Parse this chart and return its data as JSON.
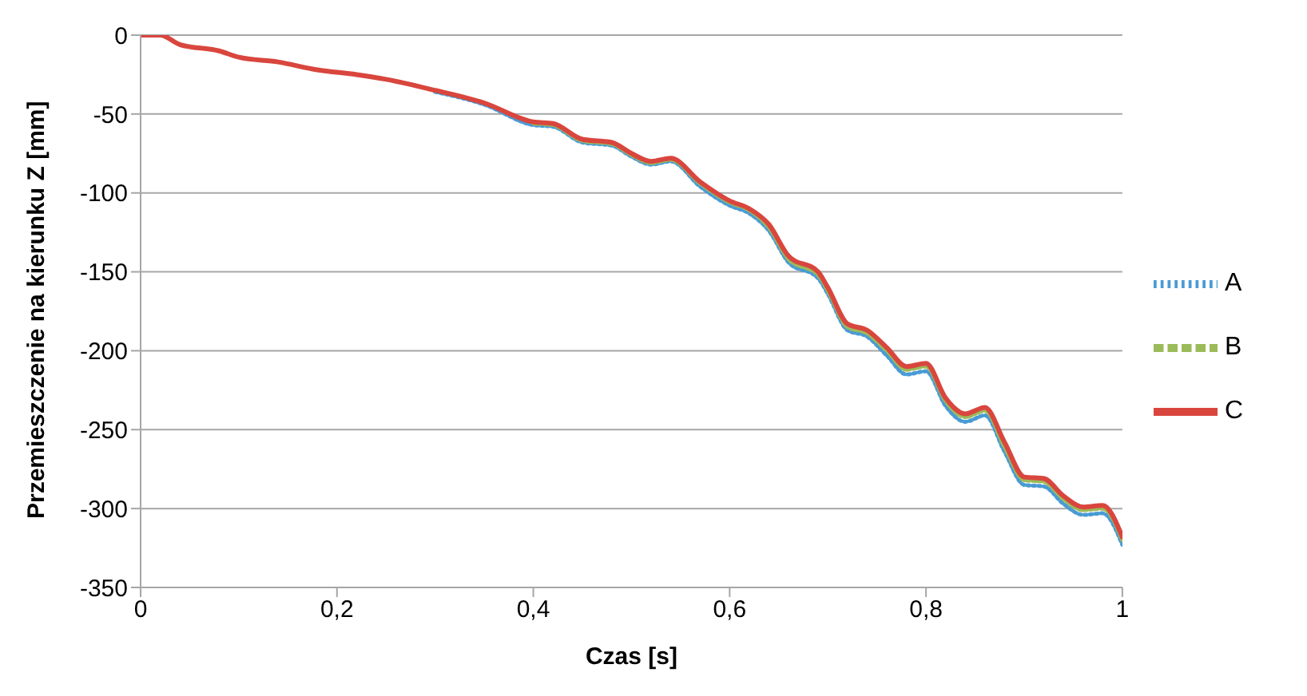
{
  "chart_data": {
    "type": "line",
    "xlabel": "Czas [s]",
    "ylabel": "Przemieszczenie na kierunku Z [mm]",
    "x": [
      0,
      0.02,
      0.04,
      0.08,
      0.1,
      0.14,
      0.18,
      0.22,
      0.25,
      0.3,
      0.35,
      0.4,
      0.42,
      0.45,
      0.48,
      0.5,
      0.52,
      0.54,
      0.57,
      0.6,
      0.62,
      0.64,
      0.66,
      0.69,
      0.7,
      0.72,
      0.74,
      0.76,
      0.78,
      0.8,
      0.82,
      0.84,
      0.86,
      0.88,
      0.9,
      0.92,
      0.94,
      0.96,
      0.98,
      1
    ],
    "series": [
      {
        "name": "A",
        "color": "#4a9bd4",
        "line_style": "dotted",
        "values": [
          null,
          null,
          null,
          null,
          null,
          null,
          null,
          null,
          null,
          -36,
          -44,
          -57,
          -58,
          -68,
          -70,
          -77,
          -82,
          -80,
          -96,
          -108,
          -113,
          -124,
          -144,
          -154,
          -164,
          -187,
          -191,
          -203,
          -215,
          -213,
          -235,
          -245,
          -241,
          -264,
          -285,
          -286,
          -297,
          -304,
          -303,
          -323
        ]
      },
      {
        "name": "B",
        "color": "#9bbb59",
        "line_style": "dashed",
        "values": [
          null,
          null,
          null,
          null,
          null,
          null,
          null,
          null,
          null,
          null,
          null,
          -56,
          -57,
          -67,
          -69,
          -76,
          -81,
          -79,
          -94,
          -106,
          -111,
          -122,
          -142,
          -152,
          -162,
          -185,
          -189,
          -200,
          -212,
          -210,
          -232,
          -242,
          -238,
          -261,
          -282,
          -283,
          -294,
          -301,
          -300,
          -320
        ]
      },
      {
        "name": "C",
        "color": "#d9463e",
        "line_style": "solid",
        "values": [
          0,
          0,
          -6,
          -10,
          -14,
          -17,
          -22,
          -25,
          -28,
          -35,
          -43,
          -55,
          -56,
          -66,
          -68,
          -75,
          -80,
          -78,
          -93,
          -105,
          -110,
          -120,
          -140,
          -150,
          -160,
          -183,
          -187,
          -198,
          -210,
          -208,
          -230,
          -240,
          -236,
          -258,
          -280,
          -281,
          -292,
          -299,
          -298,
          -318
        ]
      }
    ],
    "xlim": [
      0,
      1
    ],
    "xticks": [
      0,
      {
        "value": 0.2,
        "label": "0,2"
      },
      {
        "value": 0.4,
        "label": "0,4"
      },
      {
        "value": 0.6,
        "label": "0,6"
      },
      {
        "value": 0.8,
        "label": "0,8"
      },
      1
    ],
    "ylim": [
      -350,
      0
    ],
    "yticks": [
      -350,
      -300,
      -250,
      -200,
      -150,
      -100,
      -50,
      0
    ],
    "grid": "y",
    "legend": "right",
    "marker": "none"
  }
}
